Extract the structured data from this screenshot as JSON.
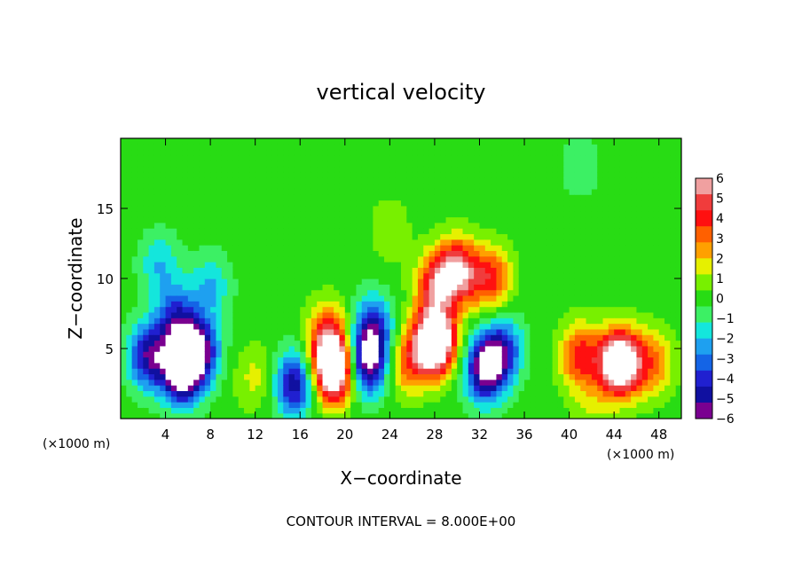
{
  "chart_data": {
    "type": "heatmap",
    "title": "vertical velocity",
    "xlabel": "X−coordinate",
    "ylabel": "Z−coordinate",
    "x_unit_label": "(×1000 m)",
    "y_unit_label": "(×1000 m)",
    "footer": "CONTOUR INTERVAL = 8.000E+00",
    "xlim": [
      0,
      50
    ],
    "ylim": [
      0,
      20
    ],
    "x_ticks": [
      4,
      8,
      12,
      16,
      20,
      24,
      28,
      32,
      36,
      40,
      44,
      48
    ],
    "y_ticks": [
      5,
      10,
      15
    ],
    "colorbar": {
      "ticks": [
        6,
        5,
        4,
        3,
        2,
        1,
        0,
        -1,
        -2,
        -3,
        -4,
        -5,
        -6
      ],
      "tick_labels": [
        "6",
        "5",
        "4",
        "3",
        "2",
        "1",
        "0",
        "−1",
        "−2",
        "−3",
        "−4",
        "−5",
        "−6"
      ],
      "range": [
        -6,
        6
      ],
      "colors": [
        "#7a0090",
        "#1010a0",
        "#2020d0",
        "#1464e6",
        "#1ea0f0",
        "#14e6dc",
        "#3cf064",
        "#28dc14",
        "#78f000",
        "#e6f000",
        "#ffa000",
        "#ff6000",
        "#ff1010",
        "#f03c3c",
        "#f0a0a0"
      ]
    },
    "zero_contour_color": "#000000",
    "features": [
      {
        "x": 5.5,
        "z": 3.5,
        "w": -8
      },
      {
        "x": 5.0,
        "z": 7.0,
        "w": -4
      },
      {
        "x": 2.5,
        "z": 4.5,
        "w": -5
      },
      {
        "x": 7.0,
        "z": 5.0,
        "w": -5
      },
      {
        "x": 8.0,
        "z": 9.5,
        "w": -2
      },
      {
        "x": 3.5,
        "z": 11.0,
        "w": -2
      },
      {
        "x": 12.0,
        "z": 3.0,
        "w": 1.5
      },
      {
        "x": 15.5,
        "z": 2.5,
        "w": -5
      },
      {
        "x": 19.0,
        "z": 3.5,
        "w": 9
      },
      {
        "x": 18.5,
        "z": 6.0,
        "w": 4
      },
      {
        "x": 22.0,
        "z": 4.0,
        "w": -6
      },
      {
        "x": 22.5,
        "z": 6.5,
        "w": -4
      },
      {
        "x": 25.5,
        "z": 4.0,
        "w": 3
      },
      {
        "x": 28.0,
        "z": 5.5,
        "w": 10
      },
      {
        "x": 28.0,
        "z": 9.5,
        "w": 4
      },
      {
        "x": 30.0,
        "z": 10.5,
        "w": 6
      },
      {
        "x": 33.0,
        "z": 10.0,
        "w": 4
      },
      {
        "x": 32.5,
        "z": 3.5,
        "w": -6
      },
      {
        "x": 34.0,
        "z": 5.0,
        "w": -4
      },
      {
        "x": 44.5,
        "z": 4.0,
        "w": 9
      },
      {
        "x": 41.0,
        "z": 4.5,
        "w": 4
      },
      {
        "x": 47.5,
        "z": 4.0,
        "w": 3
      },
      {
        "x": 42.0,
        "z": 1.0,
        "w": 1
      },
      {
        "x": 24.0,
        "z": 13.5,
        "w": 1
      },
      {
        "x": 41.0,
        "z": 18.0,
        "w": -1
      }
    ]
  }
}
